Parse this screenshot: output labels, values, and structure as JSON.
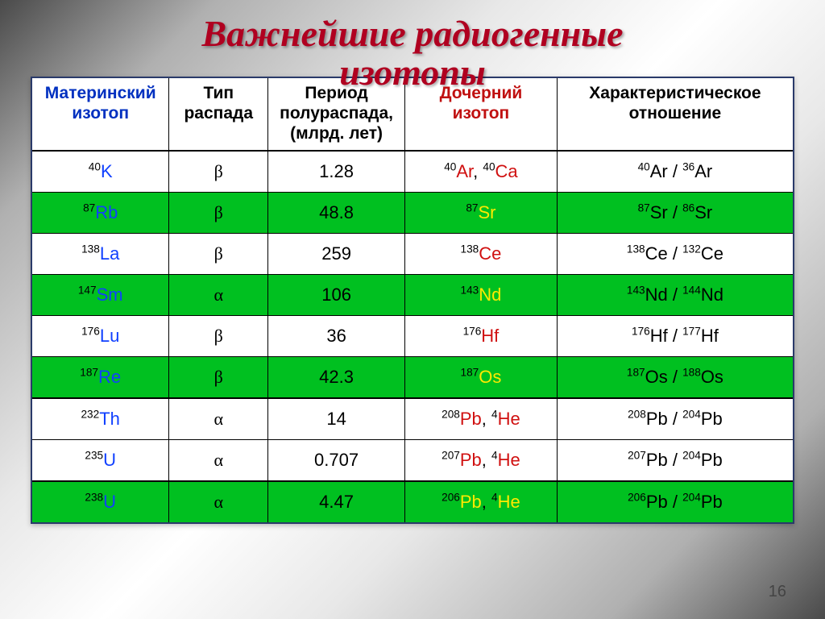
{
  "title_line1": "Важнейшие радиогенные",
  "title_line2": "изотопы",
  "columns": {
    "parent": "Материнский\nизотоп",
    "decay_type": "Тип\nраспада",
    "half_life": "Период\nполураспада,\n(млрд. лет)",
    "daughter": "Дочерний\nизотоп",
    "ratio": "Характеристическое\nотношение"
  },
  "rows": [
    {
      "hl": false,
      "parent_s": "40",
      "parent_e": "K",
      "decay": "β",
      "half": "1.28",
      "daughter": [
        {
          "s": "40",
          "e": "Ar"
        },
        {
          "s": "40",
          "e": "Ca"
        }
      ],
      "ratio": [
        {
          "s": "40",
          "e": "Ar"
        },
        {
          "s": "36",
          "e": "Ar"
        }
      ]
    },
    {
      "hl": true,
      "parent_s": "87",
      "parent_e": "Rb",
      "decay": "β",
      "half": "48.8",
      "daughter": [
        {
          "s": "87",
          "e": "Sr"
        }
      ],
      "ratio": [
        {
          "s": "87",
          "e": "Sr"
        },
        {
          "s": "86",
          "e": "Sr"
        }
      ]
    },
    {
      "hl": false,
      "parent_s": "138",
      "parent_e": "La",
      "decay": "β",
      "half": "259",
      "daughter": [
        {
          "s": "138",
          "e": "Ce"
        }
      ],
      "ratio": [
        {
          "s": "138",
          "e": "Ce"
        },
        {
          "s": "132",
          "e": "Ce"
        }
      ]
    },
    {
      "hl": true,
      "parent_s": "147",
      "parent_e": "Sm",
      "decay": "α",
      "half": "106",
      "daughter": [
        {
          "s": "143",
          "e": "Nd"
        }
      ],
      "ratio": [
        {
          "s": "143",
          "e": "Nd"
        },
        {
          "s": "144",
          "e": "Nd"
        }
      ]
    },
    {
      "hl": false,
      "parent_s": "176",
      "parent_e": "Lu",
      "decay": "β",
      "half": "36",
      "daughter": [
        {
          "s": "176",
          "e": "Hf"
        }
      ],
      "ratio": [
        {
          "s": "176",
          "e": "Hf"
        },
        {
          "s": "177",
          "e": "Hf"
        }
      ]
    },
    {
      "hl": true,
      "parent_s": "187",
      "parent_e": "Re",
      "decay": "β",
      "half": "42.3",
      "daughter": [
        {
          "s": "187",
          "e": "Os"
        }
      ],
      "ratio": [
        {
          "s": "187",
          "e": "Os"
        },
        {
          "s": "188",
          "e": "Os"
        }
      ]
    },
    {
      "hl": false,
      "thick": true,
      "parent_s": "232",
      "parent_e": "Th",
      "decay": "α",
      "half": "14",
      "daughter": [
        {
          "s": "208",
          "e": "Pb"
        },
        {
          "s": "4",
          "e": "He"
        }
      ],
      "ratio": [
        {
          "s": "208",
          "e": "Pb"
        },
        {
          "s": "204",
          "e": "Pb"
        }
      ]
    },
    {
      "hl": false,
      "parent_s": "235",
      "parent_e": "U",
      "decay": "α",
      "half": "0.707",
      "daughter": [
        {
          "s": "207",
          "e": "Pb"
        },
        {
          "s": "4",
          "e": "He"
        }
      ],
      "ratio": [
        {
          "s": "207",
          "e": "Pb"
        },
        {
          "s": "204",
          "e": "Pb"
        }
      ]
    },
    {
      "hl": true,
      "thick": true,
      "parent_s": "238",
      "parent_e": "U",
      "decay": "α",
      "half": "4.47",
      "daughter": [
        {
          "s": "206",
          "e": "Pb"
        },
        {
          "s": "4",
          "e": "He"
        }
      ],
      "ratio": [
        {
          "s": "206",
          "e": "Pb"
        },
        {
          "s": "204",
          "e": "Pb"
        }
      ]
    }
  ],
  "page_number": "16",
  "colors": {
    "title": "#b00020",
    "highlight_row": "#00c020",
    "parent_text": "#1040ff",
    "daughter_text": "#d01010",
    "daughter_text_hl": "#ffea00",
    "header_parent": "#0030c0",
    "header_daughter": "#c01010",
    "border": "#000000",
    "outer_border": "#2a3a6a"
  }
}
